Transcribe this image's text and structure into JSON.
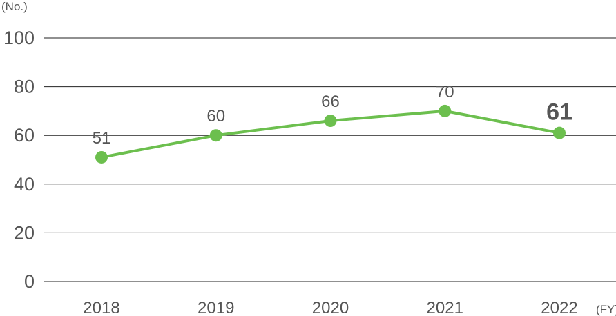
{
  "chart_data": {
    "type": "line",
    "y_unit": "(No.)",
    "x_unit": "(FY)",
    "categories": [
      "2018",
      "2019",
      "2020",
      "2021",
      "2022"
    ],
    "series": [
      {
        "values": [
          51,
          60,
          66,
          70,
          61
        ]
      }
    ],
    "data_labels": [
      "51",
      "60",
      "66",
      "70",
      "61"
    ],
    "highlight_index": 4,
    "ylim": [
      0,
      100
    ],
    "yticks": [
      "0",
      "20",
      "40",
      "60",
      "80",
      "100"
    ],
    "ytick_values": [
      0,
      20,
      40,
      60,
      80,
      100
    ],
    "grid": true,
    "colors": {
      "line": "#6cbf4e",
      "highlight": "#6cbf4e",
      "grid": "#222222",
      "text": "#555555"
    }
  }
}
